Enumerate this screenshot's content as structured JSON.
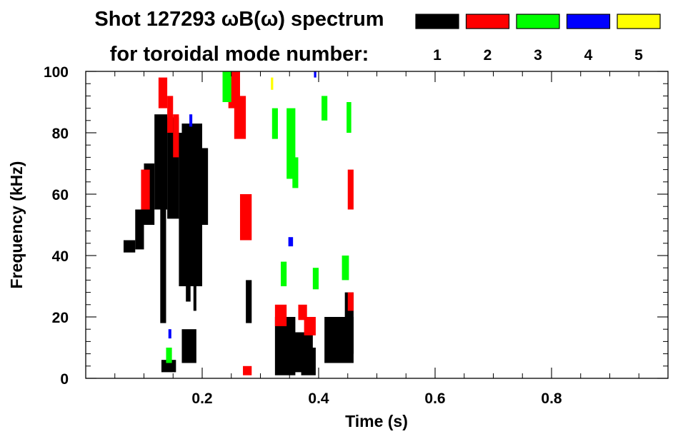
{
  "chart_data": {
    "type": "heatmap",
    "title": "Shot 127293 ωB(ω) spectrum",
    "subtitle": "for toroidal mode number:",
    "xlabel": "Time (s)",
    "ylabel": "Frequency (kHz)",
    "xlim": [
      0.0,
      1.0
    ],
    "ylim": [
      0,
      100
    ],
    "xticks": [
      0.2,
      0.4,
      0.6,
      0.8
    ],
    "xtick_labels": [
      "0.2",
      "0.4",
      "0.6",
      "0.8"
    ],
    "yticks": [
      0,
      20,
      40,
      60,
      80,
      100
    ],
    "ytick_labels": [
      "0",
      "20",
      "40",
      "60",
      "80",
      "100"
    ],
    "grid": false,
    "legend_placement": "top-right",
    "legend": [
      {
        "label": "1",
        "color": "#000000"
      },
      {
        "label": "2",
        "color": "#ff0000"
      },
      {
        "label": "3",
        "color": "#00ff00"
      },
      {
        "label": "4",
        "color": "#0000ff"
      },
      {
        "label": "5",
        "color": "#ffff00"
      }
    ],
    "series": [
      {
        "mode": 1,
        "color": "#000000",
        "patches": [
          {
            "t": [
              0.065,
              0.085
            ],
            "f": [
              41,
              45
            ]
          },
          {
            "t": [
              0.085,
              0.1
            ],
            "f": [
              42,
              55
            ]
          },
          {
            "t": [
              0.1,
              0.118
            ],
            "f": [
              50,
              70
            ]
          },
          {
            "t": [
              0.118,
              0.14
            ],
            "f": [
              55,
              86
            ]
          },
          {
            "t": [
              0.128,
              0.138
            ],
            "f": [
              18,
              55
            ]
          },
          {
            "t": [
              0.14,
              0.16
            ],
            "f": [
              52,
              85
            ]
          },
          {
            "t": [
              0.16,
              0.2
            ],
            "f": [
              30,
              80
            ]
          },
          {
            "t": [
              0.165,
              0.2
            ],
            "f": [
              60,
              83
            ]
          },
          {
            "t": [
              0.172,
              0.18
            ],
            "f": [
              25,
              60
            ]
          },
          {
            "t": [
              0.185,
              0.19
            ],
            "f": [
              22,
              55
            ]
          },
          {
            "t": [
              0.2,
              0.21
            ],
            "f": [
              50,
              75
            ]
          },
          {
            "t": [
              0.13,
              0.155
            ],
            "f": [
              2,
              6
            ]
          },
          {
            "t": [
              0.165,
              0.19
            ],
            "f": [
              5,
              16
            ]
          },
          {
            "t": [
              0.275,
              0.285
            ],
            "f": [
              18,
              32
            ]
          },
          {
            "t": [
              0.325,
              0.36
            ],
            "f": [
              1,
              20
            ]
          },
          {
            "t": [
              0.355,
              0.39
            ],
            "f": [
              2,
              15
            ]
          },
          {
            "t": [
              0.37,
              0.395
            ],
            "f": [
              1,
              10
            ]
          },
          {
            "t": [
              0.41,
              0.46
            ],
            "f": [
              5,
              20
            ]
          },
          {
            "t": [
              0.445,
              0.46
            ],
            "f": [
              8,
              28
            ]
          }
        ]
      },
      {
        "mode": 2,
        "color": "#ff0000",
        "patches": [
          {
            "t": [
              0.125,
              0.14
            ],
            "f": [
              88,
              98
            ]
          },
          {
            "t": [
              0.14,
              0.15
            ],
            "f": [
              80,
              92
            ]
          },
          {
            "t": [
              0.15,
              0.16
            ],
            "f": [
              72,
              86
            ]
          },
          {
            "t": [
              0.095,
              0.11
            ],
            "f": [
              55,
              68
            ]
          },
          {
            "t": [
              0.245,
              0.265
            ],
            "f": [
              88,
              100
            ]
          },
          {
            "t": [
              0.255,
              0.275
            ],
            "f": [
              78,
              92
            ]
          },
          {
            "t": [
              0.265,
              0.285
            ],
            "f": [
              45,
              60
            ]
          },
          {
            "t": [
              0.325,
              0.345
            ],
            "f": [
              17,
              24
            ]
          },
          {
            "t": [
              0.365,
              0.38
            ],
            "f": [
              19,
              24
            ]
          },
          {
            "t": [
              0.375,
              0.395
            ],
            "f": [
              14,
              20
            ]
          },
          {
            "t": [
              0.45,
              0.46
            ],
            "f": [
              55,
              68
            ]
          },
          {
            "t": [
              0.45,
              0.46
            ],
            "f": [
              22,
              28
            ]
          },
          {
            "t": [
              0.27,
              0.285
            ],
            "f": [
              1,
              4
            ]
          }
        ]
      },
      {
        "mode": 3,
        "color": "#00ff00",
        "patches": [
          {
            "t": [
              0.235,
              0.25
            ],
            "f": [
              90,
              100
            ]
          },
          {
            "t": [
              0.32,
              0.33
            ],
            "f": [
              78,
              88
            ]
          },
          {
            "t": [
              0.345,
              0.36
            ],
            "f": [
              65,
              88
            ]
          },
          {
            "t": [
              0.355,
              0.365
            ],
            "f": [
              62,
              72
            ]
          },
          {
            "t": [
              0.405,
              0.415
            ],
            "f": [
              84,
              92
            ]
          },
          {
            "t": [
              0.335,
              0.345
            ],
            "f": [
              30,
              38
            ]
          },
          {
            "t": [
              0.39,
              0.4
            ],
            "f": [
              29,
              36
            ]
          },
          {
            "t": [
              0.44,
              0.452
            ],
            "f": [
              32,
              40
            ]
          },
          {
            "t": [
              0.448,
              0.456
            ],
            "f": [
              80,
              90
            ]
          },
          {
            "t": [
              0.138,
              0.148
            ],
            "f": [
              5,
              10
            ]
          }
        ]
      },
      {
        "mode": 4,
        "color": "#0000ff",
        "patches": [
          {
            "t": [
              0.178,
              0.183
            ],
            "f": [
              82,
              86
            ]
          },
          {
            "t": [
              0.348,
              0.356
            ],
            "f": [
              43,
              46
            ]
          },
          {
            "t": [
              0.392,
              0.396
            ],
            "f": [
              98,
              100
            ]
          },
          {
            "t": [
              0.142,
              0.147
            ],
            "f": [
              13,
              16
            ]
          }
        ]
      },
      {
        "mode": 5,
        "color": "#ffff00",
        "patches": [
          {
            "t": [
              0.318,
              0.322
            ],
            "f": [
              94,
              98
            ]
          }
        ]
      }
    ]
  }
}
